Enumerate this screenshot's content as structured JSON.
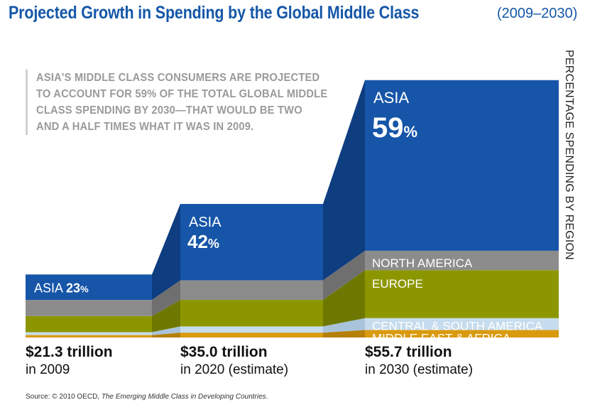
{
  "title": "Projected Growth in Spending by the Global Middle Class",
  "title_years": "(2009–2030)",
  "annotation": [
    "ASIA'S MIDDLE CLASS CONSUMERS ARE PROJECTED",
    "TO ACCOUNT FOR 59% OF THE TOTAL GLOBAL MIDDLE",
    "CLASS SPENDING BY 2030—THAT WOULD BE TWO",
    "AND A HALF TIMES WHAT IT WAS IN 2009."
  ],
  "y_axis_label": "PERCENTAGE SPENDING BY REGION",
  "source": {
    "prefix": "Source: © 2010 OECD, ",
    "title": "The Emerging Middle Class in Developing Countries",
    "suffix": "."
  },
  "categories": [
    {
      "amount": "$21.3 trillion",
      "label": "in 2009"
    },
    {
      "amount": "$35.0 trillion",
      "label": "in 2020 (estimate)"
    },
    {
      "amount": "$55.7 trillion",
      "label": "in 2030 (estimate)"
    }
  ],
  "asia_labels": [
    {
      "region": "ASIA",
      "pct": "23",
      "sign": "%"
    },
    {
      "region": "ASIA",
      "pct": "42",
      "sign": "%"
    },
    {
      "region": "ASIA",
      "pct": "59",
      "sign": "%"
    }
  ],
  "region_labels": [
    "NORTH AMERICA",
    "EUROPE",
    "CENTRAL & SOUTH AMERICA",
    "MIDDLE EAST & AFRICA"
  ],
  "colors": {
    "title": "#1457a8",
    "asia": "#1655a8",
    "asia_dark": "#0e3d80",
    "north_america": "#8c8c8c",
    "north_america_dark": "#6f6f6f",
    "europe": "#8c9700",
    "europe_dark": "#6e7800",
    "central_south_america": "#c6dcee",
    "central_south_america_dark": "#a9c4da",
    "middle_east_africa": "#d99a0e",
    "middle_east_africa_dark": "#b57f08"
  },
  "chart_data": {
    "type": "area",
    "categories": [
      "2009",
      "2020 (estimate)",
      "2030 (estimate)"
    ],
    "totals_trillion_usd": [
      21.3,
      35.0,
      55.7
    ],
    "series": [
      {
        "name": "MIDDLE EAST & AFRICA",
        "values": [
          2.2,
          2.7,
          2.6
        ]
      },
      {
        "name": "CENTRAL & SOUTH AMERICA",
        "values": [
          2.6,
          3.4,
          4.1
        ]
      },
      {
        "name": "EUROPE",
        "values": [
          14.6,
          14.6,
          16.6
        ]
      },
      {
        "name": "NORTH AMERICA",
        "values": [
          14.6,
          10.8,
          6.7
        ]
      },
      {
        "name": "ASIA",
        "values": [
          23,
          42,
          59
        ]
      }
    ]
  }
}
